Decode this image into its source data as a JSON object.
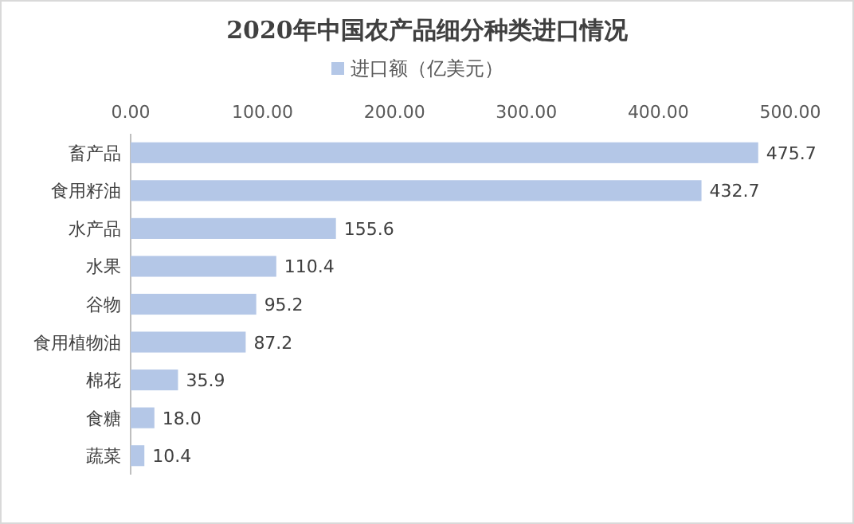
{
  "chart_data": {
    "type": "bar",
    "orientation": "horizontal",
    "title": "2020年中国农产品细分种类进口情况",
    "categories": [
      "畜产品",
      "食用籽油",
      "水产品",
      "水果",
      "谷物",
      "食用植物油",
      "棉花",
      "食糖",
      "蔬菜"
    ],
    "series": [
      {
        "name": "进口额（亿美元）",
        "color": "#b4c7e7",
        "values": [
          475.7,
          432.7,
          155.6,
          110.4,
          95.2,
          87.2,
          35.9,
          18.0,
          10.4
        ],
        "value_labels": [
          "475.7",
          "432.7",
          "155.6",
          "110.4",
          "95.2",
          "87.2",
          "35.9",
          "18.0",
          "10.4"
        ]
      }
    ],
    "xlim": [
      0,
      500
    ],
    "xticks": [
      {
        "value": 0,
        "label": "0.00"
      },
      {
        "value": 100,
        "label": "100.00"
      },
      {
        "value": 200,
        "label": "200.00"
      },
      {
        "value": 300,
        "label": "300.00"
      },
      {
        "value": 400,
        "label": "400.00"
      },
      {
        "value": 500,
        "label": "500.00"
      }
    ],
    "legend": "top"
  }
}
